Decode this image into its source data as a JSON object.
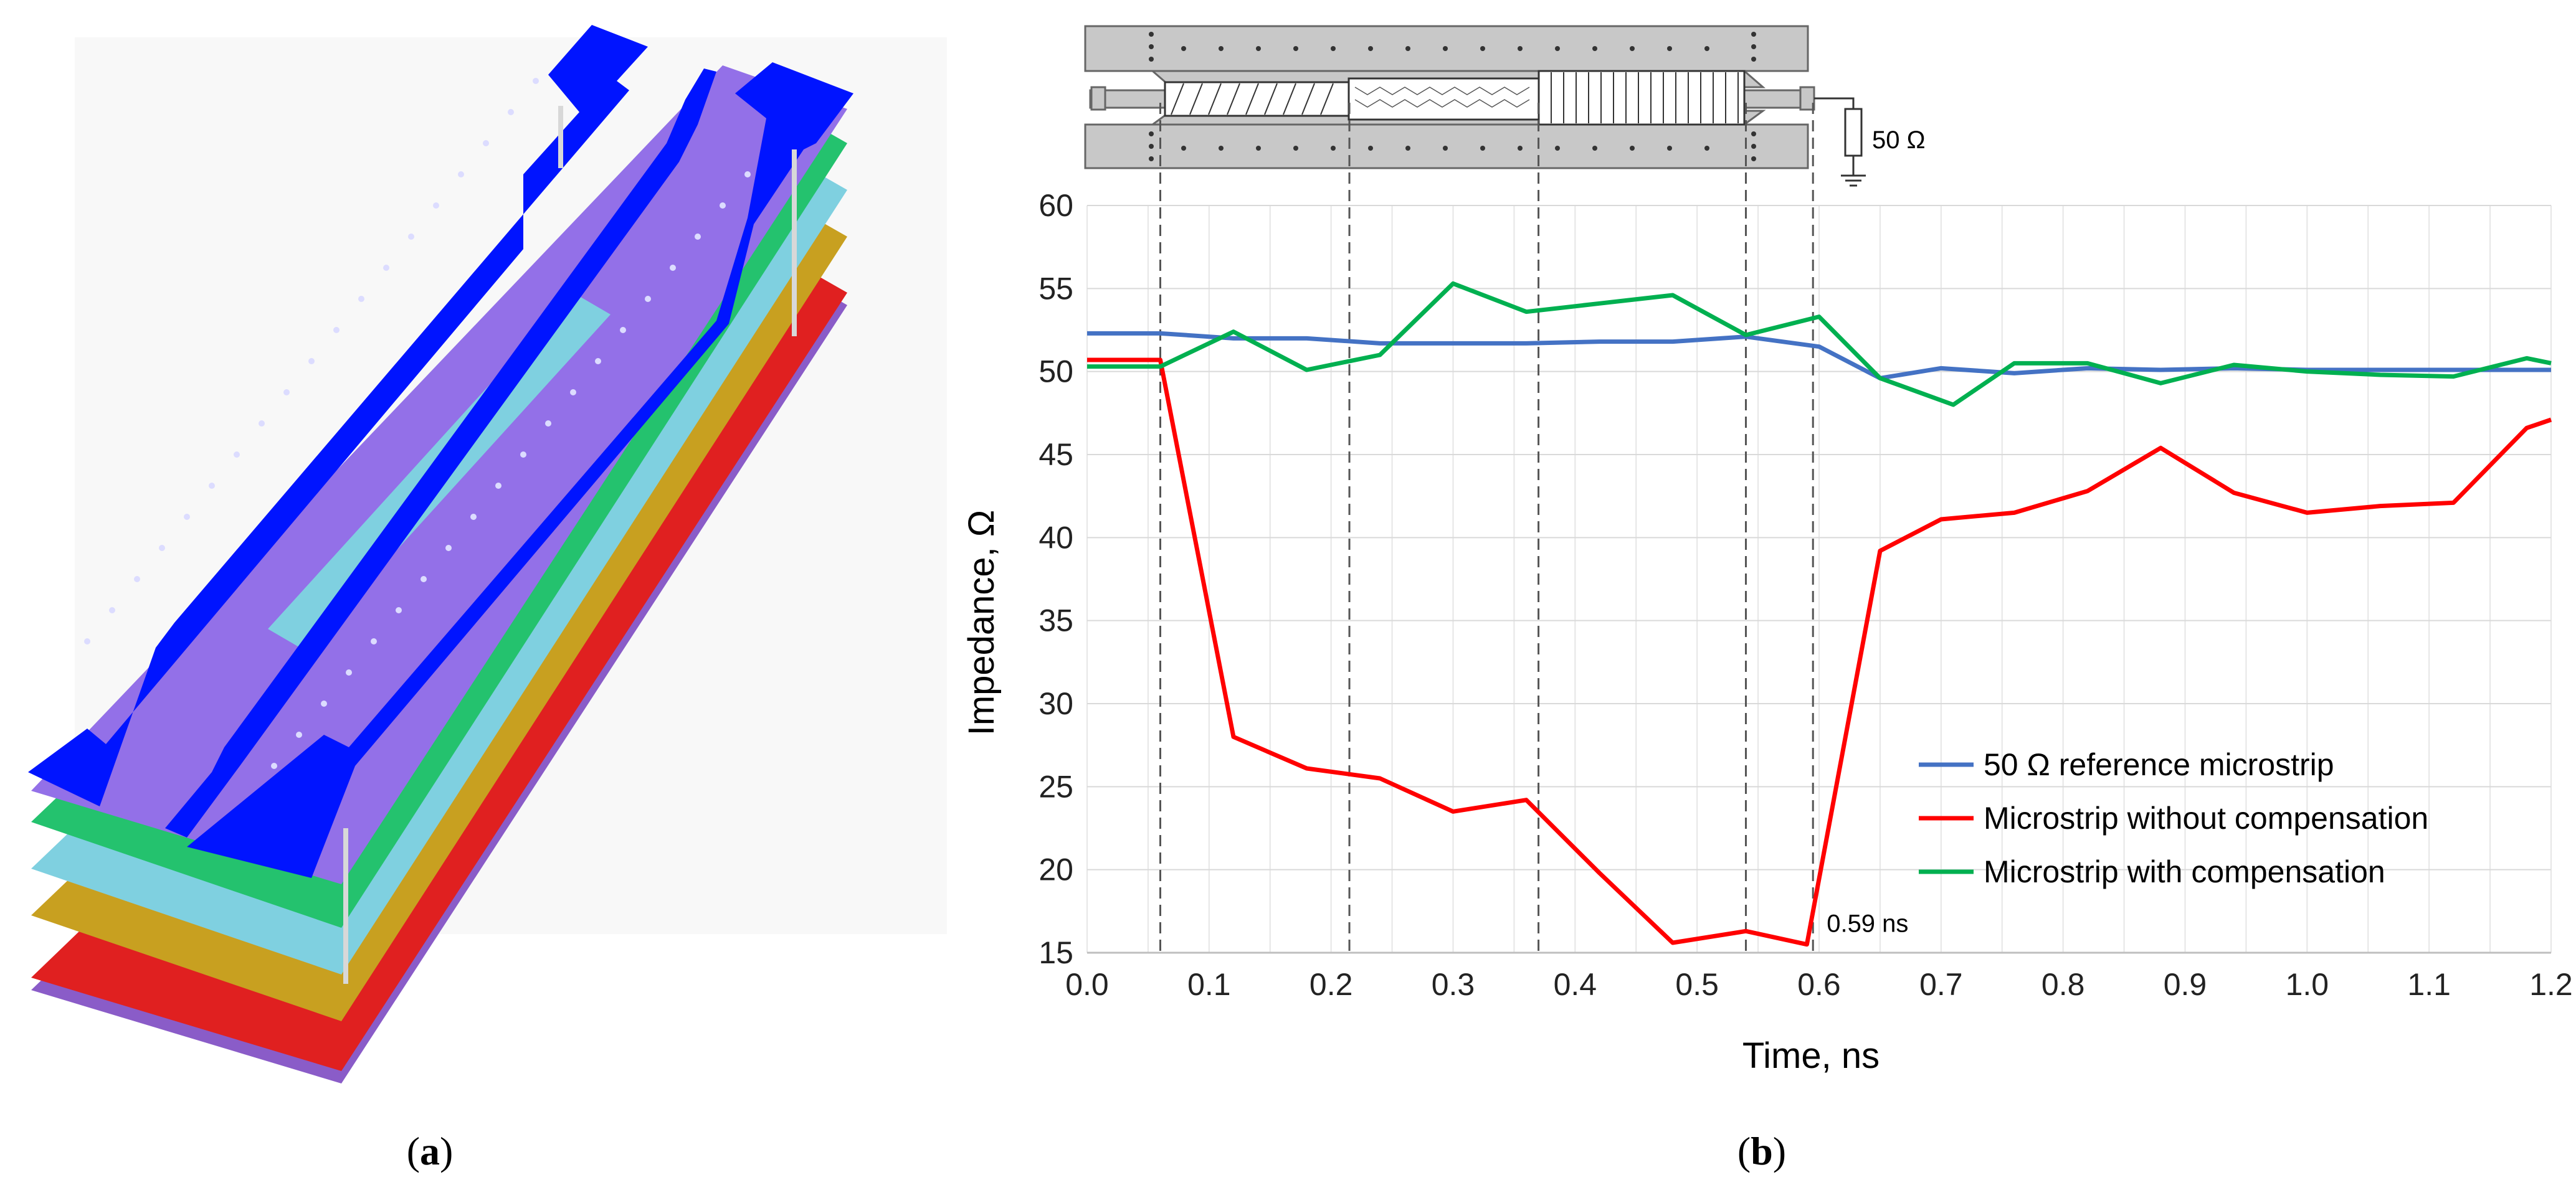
{
  "panel_a": {
    "caption_open": "(",
    "caption_letter": "a",
    "caption_close": ")"
  },
  "panel_b": {
    "caption_open": "(",
    "caption_letter": "b",
    "caption_close": ")"
  },
  "schematic": {
    "resistor_label": "50 Ω"
  },
  "colors": {
    "blue_series": "#4472c4",
    "red_series": "#ff0000",
    "green_series": "#00b050",
    "layer_blue": "#0014ff",
    "layer_purple": "#9370e8",
    "layer_green": "#24c26e",
    "layer_cyan": "#7fd0e0",
    "layer_gold": "#c8a020",
    "layer_red": "#e02020"
  },
  "chart_data": {
    "type": "line",
    "title": "",
    "xlabel": "Time, ns",
    "ylabel": "Impedance, Ω",
    "xlim": [
      0,
      1.2
    ],
    "ylim": [
      15,
      60
    ],
    "xticks": [
      "0.0",
      "0.1",
      "0.2",
      "0.3",
      "0.4",
      "0.5",
      "0.6",
      "0.7",
      "0.8",
      "0.9",
      "1.0",
      "1.1",
      "1.2"
    ],
    "yticks": [
      "15",
      "20",
      "25",
      "30",
      "35",
      "40",
      "45",
      "50",
      "55",
      "60"
    ],
    "grid": true,
    "legend_position": "bottom-right",
    "vlines": [
      0.06,
      0.215,
      0.37,
      0.54,
      0.595
    ],
    "annotation": {
      "text": "0.59 ns",
      "x": 0.595,
      "y": 17
    },
    "series": [
      {
        "name": "50 Ω reference microstrip",
        "color": "#4472c4",
        "x": [
          0,
          0.06,
          0.12,
          0.18,
          0.24,
          0.3,
          0.36,
          0.42,
          0.48,
          0.54,
          0.6,
          0.65,
          0.7,
          0.76,
          0.82,
          0.88,
          0.94,
          1.0,
          1.06,
          1.12,
          1.18,
          1.2
        ],
        "y": [
          52.3,
          52.3,
          52.0,
          52.0,
          51.7,
          51.7,
          51.7,
          51.8,
          51.8,
          52.1,
          51.5,
          49.6,
          50.2,
          49.9,
          50.2,
          50.1,
          50.2,
          50.1,
          50.1,
          50.1,
          50.1,
          50.1
        ]
      },
      {
        "name": "Microstrip without compensation",
        "color": "#ff0000",
        "x": [
          0,
          0.06,
          0.12,
          0.18,
          0.24,
          0.3,
          0.36,
          0.42,
          0.48,
          0.54,
          0.59,
          0.65,
          0.7,
          0.76,
          0.82,
          0.88,
          0.94,
          1.0,
          1.06,
          1.12,
          1.18,
          1.2
        ],
        "y": [
          50.7,
          50.7,
          28.0,
          26.1,
          25.5,
          23.5,
          24.2,
          19.8,
          15.6,
          16.3,
          15.5,
          39.2,
          41.1,
          41.5,
          42.8,
          45.4,
          42.7,
          41.5,
          41.9,
          42.1,
          46.6,
          47.1
        ]
      },
      {
        "name": "Microstrip with compensation",
        "color": "#00b050",
        "x": [
          0,
          0.06,
          0.12,
          0.18,
          0.24,
          0.3,
          0.36,
          0.42,
          0.48,
          0.54,
          0.6,
          0.65,
          0.71,
          0.76,
          0.82,
          0.88,
          0.94,
          1.0,
          1.06,
          1.12,
          1.18,
          1.2
        ],
        "y": [
          50.3,
          50.3,
          52.4,
          50.1,
          51.0,
          55.3,
          53.6,
          54.1,
          54.6,
          52.2,
          53.3,
          49.6,
          48.0,
          50.5,
          50.5,
          49.3,
          50.4,
          50.0,
          49.8,
          49.7,
          50.8,
          50.5
        ]
      }
    ]
  }
}
